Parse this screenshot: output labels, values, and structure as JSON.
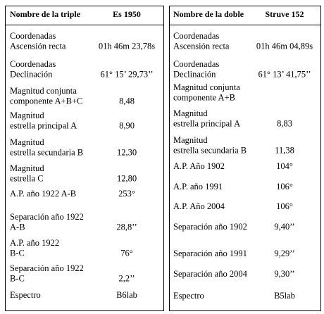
{
  "tables": [
    {
      "header": {
        "label": "Nombre de la triple",
        "value": "Es 1950"
      },
      "rows": [
        {
          "label": [
            "Coordenadas",
            "Ascensión recta"
          ],
          "value": "01h 46m 23,78s"
        },
        {
          "label": [
            "Coordenadas",
            "Declinación"
          ],
          "value": "61° 15’ 29,73’’"
        },
        {
          "label": [
            "Magnitud conjunta",
            "componente A+B+C"
          ],
          "value": "8,48"
        },
        {
          "label": [
            "Magnitud",
            "estrella principal A"
          ],
          "value": "8,90"
        },
        {
          "label": [
            "Magnitud",
            "estrella secundaria B"
          ],
          "value": "12,30"
        },
        {
          "label": [
            "Magnitud",
            "estrella C"
          ],
          "value": "12,80"
        },
        {
          "label": [
            "A.P. año 1922 A-B"
          ],
          "value": "253°"
        },
        {
          "label": [
            "Separación año 1922",
            "A-B"
          ],
          "value": "28,8’’"
        },
        {
          "label": [
            "A.P. año 1922",
            "B-C"
          ],
          "value": "76°"
        },
        {
          "label": [
            "Separación año 1922",
            "B-C"
          ],
          "value": "2,2’’"
        },
        {
          "label": [
            "Espectro"
          ],
          "value": "B6lab"
        }
      ]
    },
    {
      "header": {
        "label": "Nombre de la doble",
        "value": "Struve 152"
      },
      "rows": [
        {
          "label": [
            "Coordenadas",
            "Ascensión recta"
          ],
          "value": "01h 46m 04,89s"
        },
        {
          "label": [
            "Coordenadas",
            "Declinación"
          ],
          "value": "61° 13’ 41,75’’"
        },
        {
          "label": [
            "Magnitud conjunta",
            "componente A+B"
          ]
        },
        {
          "label": [
            "Magnitud",
            "estrella principal A"
          ],
          "value": "8,83"
        },
        {
          "label": [
            "Magnitud",
            "estrella secundaria B"
          ],
          "value": "11,38"
        },
        {
          "label": [
            "A.P. Año 1902"
          ],
          "value": "104°"
        },
        {
          "label": [
            "A.P. año 1991"
          ],
          "value": "106°"
        },
        {
          "label": [
            "A.P. Año 2004"
          ],
          "value": "106°"
        },
        {
          "label": [
            "Separación año 1902"
          ],
          "value": "9,40’’"
        },
        {
          "label": [
            "Separación año 1991"
          ],
          "value": "9,29’’"
        },
        {
          "label": [
            "Separación año 2004"
          ],
          "value": "9,30’’"
        },
        {
          "label": [
            "Espectro"
          ],
          "value": "B5lab"
        }
      ]
    }
  ]
}
